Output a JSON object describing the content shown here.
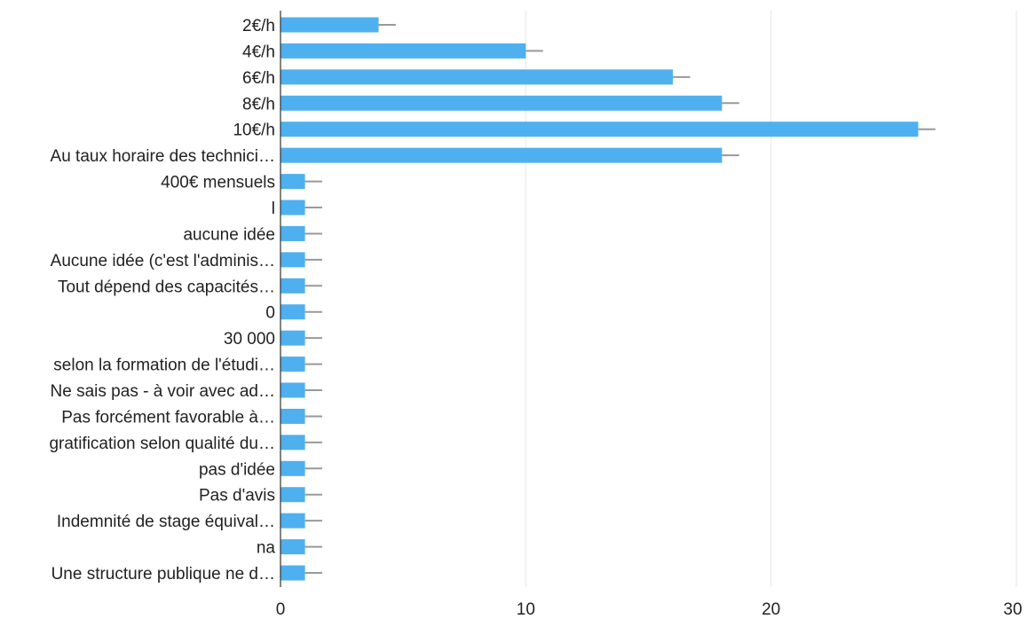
{
  "chart_data": {
    "type": "bar",
    "orientation": "horizontal",
    "categories": [
      "2€/h",
      "4€/h",
      "6€/h",
      "8€/h",
      "10€/h",
      "Au taux horaire des technici…",
      "400€ mensuels",
      "l",
      "aucune idée",
      "Aucune idée (c'est l'adminis…",
      "Tout dépend des capacités…",
      "0",
      "30 000",
      "selon la formation de l'étudi…",
      "Ne sais pas - à voir avec ad…",
      "Pas forcément favorable à…",
      "gratification selon qualité du…",
      "pas d'idée",
      "Pas d'avis",
      "Indemnité de stage équival…",
      "na",
      "Une structure publique ne d…"
    ],
    "values": [
      4,
      10,
      16,
      18,
      26,
      18,
      1,
      1,
      1,
      1,
      1,
      1,
      1,
      1,
      1,
      1,
      1,
      1,
      1,
      1,
      1,
      1
    ],
    "error_high": [
      4.7,
      10.7,
      16.7,
      18.7,
      26.7,
      18.7,
      1.7,
      1.7,
      1.7,
      1.7,
      1.7,
      1.7,
      1.7,
      1.7,
      1.7,
      1.7,
      1.7,
      1.7,
      1.7,
      1.7,
      1.7,
      1.7
    ],
    "xlim": [
      0,
      30
    ],
    "xticks": [
      "0",
      "10",
      "20",
      "30"
    ],
    "title": "",
    "xlabel": "",
    "ylabel": "",
    "grid": true,
    "bar_color": "#4fb0ef",
    "error_color": "#999999"
  }
}
